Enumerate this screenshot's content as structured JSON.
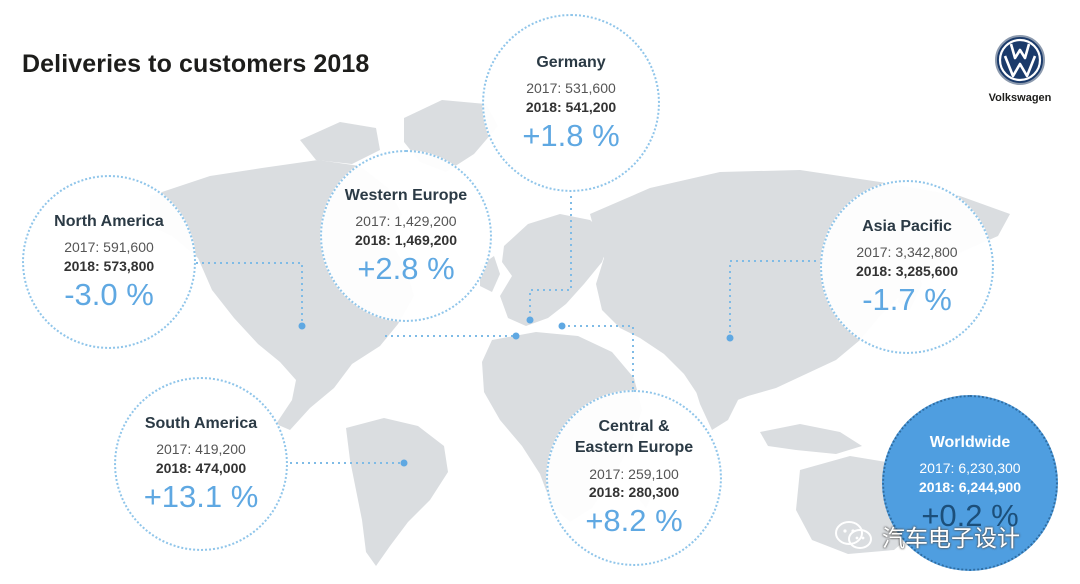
{
  "title": "Deliveries to customers 2018",
  "brand": {
    "name": "Volkswagen"
  },
  "colors": {
    "accent": "#5fa8e2",
    "worldwide_fill": "#4f9ee0",
    "map": "#dadde0"
  },
  "regions": [
    {
      "id": "germany",
      "name": "Germany",
      "y2017": "2017: 531,600",
      "y2018": "2018: 541,200",
      "change": "+1.8 %"
    },
    {
      "id": "western-europe",
      "name": "Western Europe",
      "y2017": "2017: 1,429,200",
      "y2018": "2018: 1,469,200",
      "change": "+2.8 %"
    },
    {
      "id": "north-america",
      "name": "North America",
      "y2017": "2017: 591,600",
      "y2018": "2018: 573,800",
      "change": "-3.0 %"
    },
    {
      "id": "asia-pacific",
      "name": "Asia Pacific",
      "y2017": "2017: 3,342,800",
      "y2018": "2018: 3,285,600",
      "change": "-1.7 %"
    },
    {
      "id": "south-america",
      "name": "South America",
      "y2017": "2017: 419,200",
      "y2018": "2018: 474,000",
      "change": "+13.1 %"
    },
    {
      "id": "central-eastern-europe",
      "name": "Central & Eastern Europe",
      "y2017": "2017: 259,100",
      "y2018": "2018: 280,300",
      "change": "+8.2 %"
    },
    {
      "id": "worldwide",
      "name": "Worldwide",
      "y2017": "2017: 6,230,300",
      "y2018": "2018: 6,244,900",
      "change": "+0.2 %"
    }
  ],
  "watermark": "汽车电子设计"
}
